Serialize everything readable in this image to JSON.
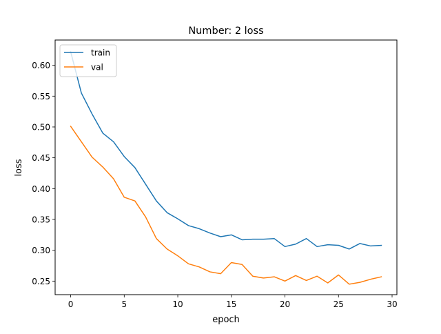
{
  "chart_data": {
    "type": "line",
    "title": "Number: 2 loss",
    "xlabel": "epoch",
    "ylabel": "loss",
    "xlim": [
      -1.45,
      30.45
    ],
    "ylim": [
      0.228,
      0.641
    ],
    "xticks": [
      0,
      5,
      10,
      15,
      20,
      25,
      30
    ],
    "yticks": [
      0.25,
      0.3,
      0.35,
      0.4,
      0.45,
      0.5,
      0.55,
      0.6
    ],
    "ytick_labels": [
      "0.25",
      "0.30",
      "0.35",
      "0.40",
      "0.45",
      "0.50",
      "0.55",
      "0.60"
    ],
    "grid": false,
    "legend": "upper-left",
    "x": [
      0,
      1,
      2,
      3,
      4,
      5,
      6,
      7,
      8,
      9,
      10,
      11,
      12,
      13,
      14,
      15,
      16,
      17,
      18,
      19,
      20,
      21,
      22,
      23,
      24,
      25,
      26,
      27,
      28,
      29
    ],
    "series": [
      {
        "name": "train",
        "color": "#1f77b4",
        "values": [
          0.622,
          0.555,
          0.521,
          0.49,
          0.476,
          0.452,
          0.434,
          0.407,
          0.38,
          0.361,
          0.351,
          0.34,
          0.335,
          0.328,
          0.322,
          0.325,
          0.317,
          0.318,
          0.318,
          0.319,
          0.306,
          0.31,
          0.319,
          0.306,
          0.309,
          0.308,
          0.302,
          0.311,
          0.307,
          0.308
        ]
      },
      {
        "name": "val",
        "color": "#ff7f0e",
        "values": [
          0.501,
          0.476,
          0.451,
          0.435,
          0.416,
          0.386,
          0.38,
          0.354,
          0.319,
          0.302,
          0.291,
          0.278,
          0.273,
          0.265,
          0.262,
          0.28,
          0.277,
          0.258,
          0.255,
          0.257,
          0.25,
          0.259,
          0.251,
          0.258,
          0.247,
          0.26,
          0.245,
          0.248,
          0.253,
          0.257
        ]
      }
    ]
  }
}
